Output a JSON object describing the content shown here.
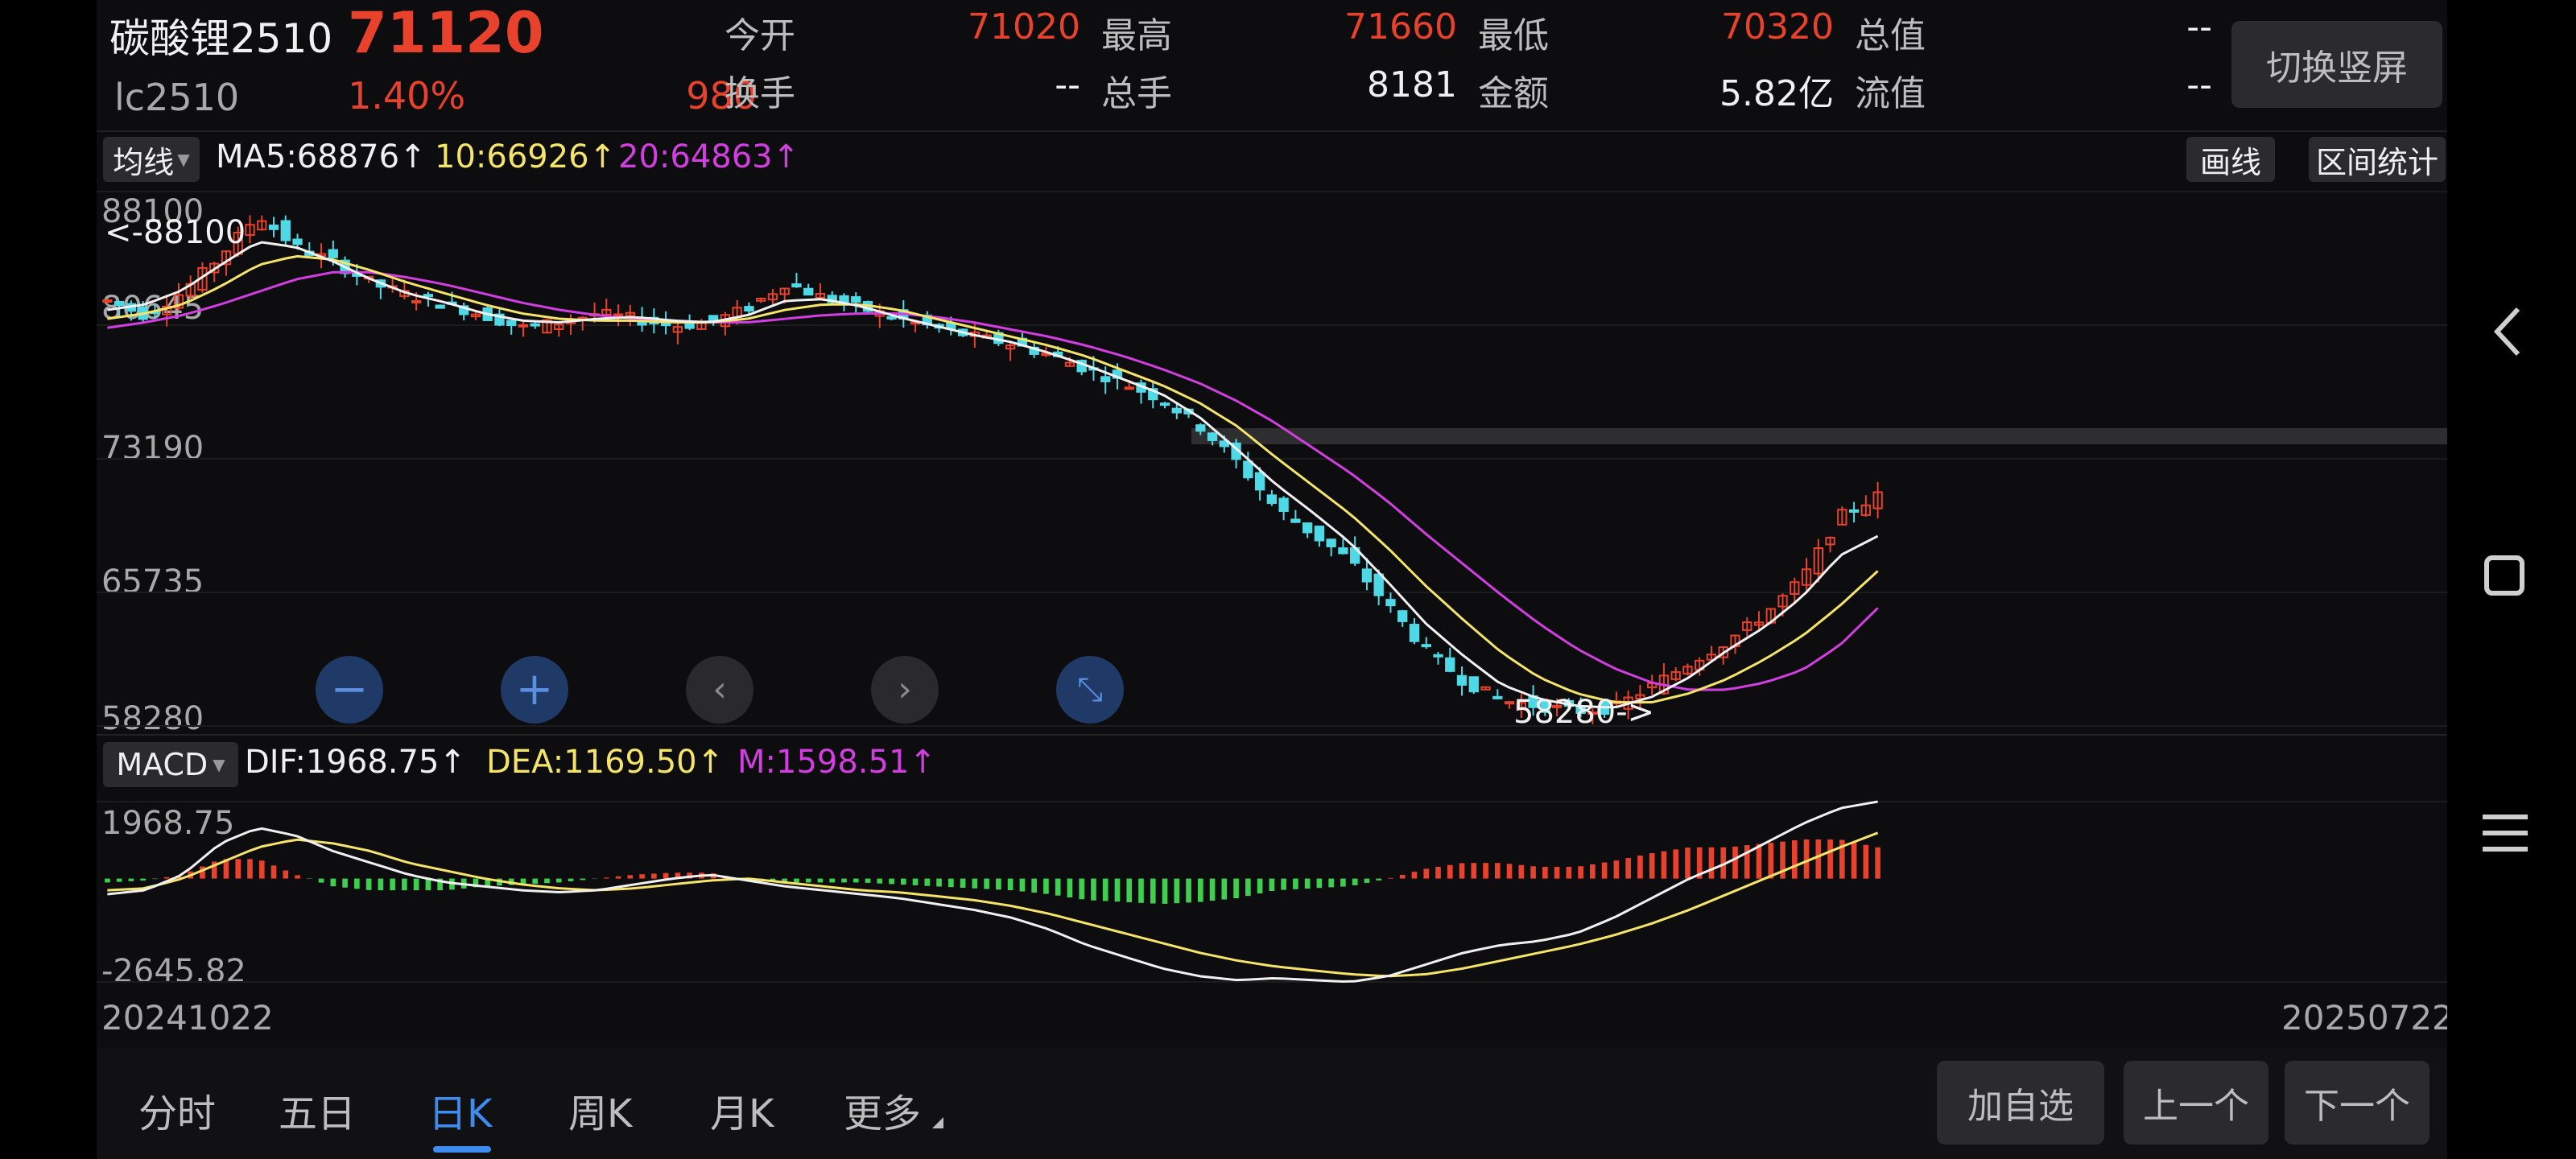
{
  "header": {
    "name": "碳酸锂2510",
    "price": "71120",
    "code": "lc2510",
    "change_pct": "1.40%",
    "change_abs": "980",
    "stats": [
      {
        "label": "今开",
        "value": "71020",
        "color": "#e8412c"
      },
      {
        "label": "最高",
        "value": "71660",
        "color": "#e8412c"
      },
      {
        "label": "最低",
        "value": "70320",
        "color": "#e8412c"
      },
      {
        "label": "总值",
        "value": "--",
        "color": "#f0f0f0"
      },
      {
        "label": "换手",
        "value": "--",
        "color": "#f0f0f0"
      },
      {
        "label": "总手",
        "value": "8181",
        "color": "#f0f0f0"
      },
      {
        "label": "金额",
        "value": "5.82亿",
        "color": "#f0f0f0"
      },
      {
        "label": "流值",
        "value": "--",
        "color": "#f0f0f0"
      }
    ],
    "switch_button": "切换竖屏"
  },
  "indicators": {
    "ma_selector": "均线",
    "ma5": "MA5:68876↑",
    "ma10": "10:66926↑",
    "ma20": "20:64863↑",
    "draw_button": "画线",
    "range_button": "区间统计",
    "macd_selector": "MACD",
    "dif": "DIF:1968.75↑",
    "dea": "DEA:1169.50↑",
    "m": "M:1598.51↑"
  },
  "price_axis": {
    "max": "88100",
    "mid1": "80645",
    "mid2": "73190",
    "mid3": "65735",
    "min": "58280"
  },
  "price_markers": {
    "high_label": "<-88100",
    "low_label": "58280->"
  },
  "macd_axis": {
    "max": "1968.75",
    "min": "-2645.82"
  },
  "dates": {
    "start": "20241022",
    "end": "20250722"
  },
  "tabs": [
    "分时",
    "五日",
    "日K",
    "周K",
    "月K",
    "更多"
  ],
  "active_tab": "日K",
  "bottom_buttons": {
    "add": "加自选",
    "prev": "上一个",
    "next": "下一个"
  },
  "colors": {
    "up": "#e8412c",
    "down": "#4fd9e6",
    "ma5": "#f0f0f0",
    "ma10": "#f4e46a",
    "ma20": "#d23ee0",
    "active_tab": "#3f8cf0"
  },
  "chart_data": {
    "type": "candlestick",
    "x": [
      "20241022",
      "20250722"
    ],
    "price_range": [
      58280,
      88100
    ],
    "macd_range": [
      -2645.82,
      1968.75
    ],
    "close_trend": [
      82000,
      81200,
      82500,
      84500,
      86800,
      85000,
      84200,
      83000,
      82300,
      81800,
      81200,
      80500,
      80800,
      81300,
      81000,
      80600,
      80800,
      81600,
      83000,
      82200,
      81600,
      81000,
      80500,
      80000,
      79600,
      79000,
      78200,
      77400,
      76500,
      75000,
      73000,
      70500,
      69000,
      67500,
      65000,
      62500,
      60800,
      59700,
      59400,
      59100,
      59300,
      60500,
      61800,
      63000,
      64500,
      66500,
      70000,
      71120
    ],
    "ma5_trend": [
      81500,
      81800,
      82600,
      84000,
      85300,
      85000,
      84200,
      83200,
      82400,
      81900,
      81300,
      80900,
      80800,
      81000,
      81100,
      80900,
      80800,
      81200,
      82000,
      82100,
      81700,
      81100,
      80600,
      80100,
      79700,
      79100,
      78400,
      77600,
      76800,
      75500,
      73700,
      71800,
      70200,
      68500,
      66300,
      64000,
      62200,
      60600,
      59800,
      59400,
      59300,
      59900,
      61000,
      62500,
      63800,
      65500,
      67800,
      68876
    ],
    "ma10_trend": [
      81000,
      81300,
      81800,
      82800,
      84000,
      84500,
      84300,
      83700,
      83000,
      82400,
      81800,
      81300,
      81000,
      80900,
      80900,
      80800,
      80800,
      81000,
      81500,
      81800,
      81800,
      81500,
      81000,
      80500,
      80000,
      79500,
      78900,
      78100,
      77300,
      76300,
      75000,
      73300,
      71700,
      70100,
      68200,
      66100,
      64200,
      62400,
      61000,
      60100,
      59600,
      59600,
      60100,
      60900,
      62000,
      63300,
      65000,
      66926
    ],
    "ma20_trend": [
      80500,
      80800,
      81200,
      81800,
      82500,
      83200,
      83600,
      83600,
      83300,
      82900,
      82400,
      81900,
      81500,
      81200,
      81000,
      80900,
      80800,
      80800,
      81000,
      81200,
      81300,
      81300,
      81100,
      80800,
      80400,
      80000,
      79500,
      78900,
      78200,
      77400,
      76400,
      75200,
      73800,
      72400,
      70800,
      69000,
      67300,
      65600,
      64000,
      62600,
      61500,
      60700,
      60300,
      60300,
      60700,
      61400,
      62800,
      64863
    ],
    "dif_trend": [
      -400,
      -300,
      100,
      900,
      1300,
      1100,
      700,
      400,
      100,
      -100,
      -200,
      -300,
      -350,
      -300,
      -150,
      0,
      100,
      -50,
      -200,
      -300,
      -400,
      -500,
      -650,
      -800,
      -1000,
      -1300,
      -1700,
      -2000,
      -2300,
      -2500,
      -2600,
      -2550,
      -2600,
      -2645,
      -2500,
      -2200,
      -1900,
      -1700,
      -1600,
      -1400,
      -1000,
      -500,
      0,
      400,
      900,
      1400,
      1800,
      1968.75
    ],
    "dea_trend": [
      -300,
      -250,
      0,
      400,
      800,
      1000,
      900,
      700,
      400,
      200,
      0,
      -150,
      -250,
      -300,
      -250,
      -150,
      -50,
      0,
      -100,
      -200,
      -300,
      -350,
      -450,
      -550,
      -700,
      -900,
      -1150,
      -1400,
      -1650,
      -1900,
      -2100,
      -2250,
      -2350,
      -2450,
      -2500,
      -2450,
      -2300,
      -2100,
      -1900,
      -1700,
      -1450,
      -1150,
      -800,
      -400,
      0,
      400,
      800,
      1169.5
    ]
  }
}
